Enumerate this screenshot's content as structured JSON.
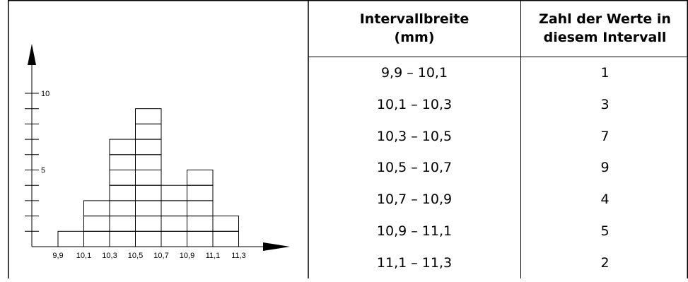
{
  "chart_data": {
    "type": "bar",
    "bin_edges": [
      9.9,
      10.1,
      10.3,
      10.5,
      10.7,
      10.9,
      11.1,
      11.3
    ],
    "bin_edge_labels": [
      "9,9",
      "10,1",
      "10,3",
      "10,5",
      "10,7",
      "10,9",
      "11,1",
      "11,3"
    ],
    "values": [
      1,
      3,
      7,
      9,
      4,
      5,
      2
    ],
    "y_ticks": [
      1,
      2,
      3,
      4,
      5,
      6,
      7,
      8,
      9,
      10
    ],
    "y_tick_labels": [
      {
        "value": 5,
        "label": "5"
      },
      {
        "value": 10,
        "label": "10"
      }
    ],
    "ylim": [
      0,
      11
    ],
    "grid": false,
    "title": "",
    "xlabel": "",
    "ylabel": ""
  },
  "table": {
    "headers": {
      "interval": [
        "Intervallbreite",
        "(mm)"
      ],
      "count": [
        "Zahl der Werte in",
        "diesem Intervall"
      ]
    },
    "rows": [
      {
        "interval": "9,9 – 10,1",
        "count": "1"
      },
      {
        "interval": "10,1 – 10,3",
        "count": "3"
      },
      {
        "interval": "10,3 – 10,5",
        "count": "7"
      },
      {
        "interval": "10,5 – 10,7",
        "count": "9"
      },
      {
        "interval": "10,7 – 10,9",
        "count": "4"
      },
      {
        "interval": "10,9 – 11,1",
        "count": "5"
      },
      {
        "interval": "11,1 – 11,3",
        "count": "2"
      }
    ]
  }
}
